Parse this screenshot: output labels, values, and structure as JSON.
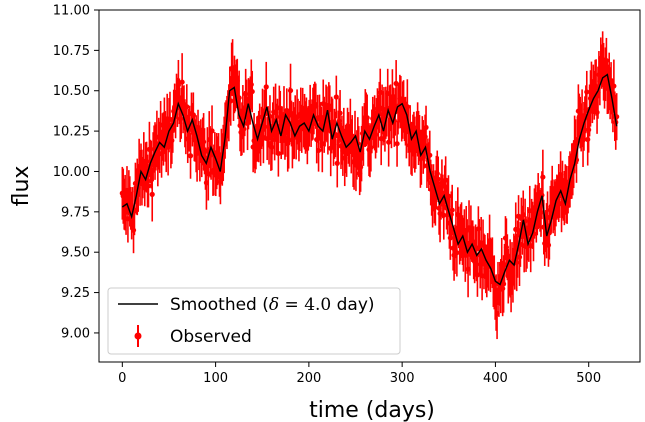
{
  "chart_data": {
    "type": "scatter",
    "xlabel": "time (days)",
    "ylabel": "flux",
    "xlim": [
      -25,
      555
    ],
    "ylim": [
      8.82,
      11.0
    ],
    "xticks": [
      0,
      100,
      200,
      300,
      400,
      500
    ],
    "yticks": [
      9.0,
      9.25,
      9.5,
      9.75,
      10.0,
      10.25,
      10.5,
      10.75,
      11.0
    ],
    "xtick_labels": [
      "0",
      "100",
      "200",
      "300",
      "400",
      "500"
    ],
    "ytick_labels": [
      "9.00",
      "9.25",
      "9.50",
      "9.75",
      "10.00",
      "10.25",
      "10.50",
      "10.75",
      "11.00"
    ],
    "legend": {
      "placement": "lower-left",
      "entries": [
        {
          "label_prefix": "Smoothed (",
          "label_delta": "δ",
          "label_eq": " = 4.0",
          "label_suffix": " day)"
        },
        {
          "label": "Observed"
        }
      ]
    },
    "series": [
      {
        "name": "Smoothed (δ = 4.0 day)",
        "kind": "line",
        "color": "#000000",
        "x": [
          0,
          5,
          10,
          15,
          20,
          25,
          30,
          35,
          40,
          45,
          50,
          55,
          60,
          65,
          70,
          75,
          80,
          85,
          90,
          95,
          100,
          105,
          110,
          115,
          120,
          125,
          130,
          135,
          140,
          145,
          150,
          155,
          160,
          165,
          170,
          175,
          180,
          185,
          190,
          195,
          200,
          205,
          210,
          215,
          220,
          225,
          230,
          235,
          240,
          245,
          250,
          255,
          260,
          265,
          270,
          275,
          280,
          285,
          290,
          295,
          300,
          305,
          310,
          315,
          320,
          325,
          330,
          335,
          340,
          345,
          350,
          355,
          360,
          365,
          370,
          375,
          380,
          385,
          390,
          395,
          400,
          405,
          410,
          415,
          420,
          425,
          430,
          435,
          440,
          445,
          450,
          455,
          460,
          465,
          470,
          475,
          480,
          485,
          490,
          495,
          500,
          505,
          510,
          515,
          520,
          525,
          530
        ],
        "y": [
          9.78,
          9.8,
          9.72,
          9.85,
          10.0,
          9.95,
          10.05,
          10.12,
          10.18,
          10.15,
          10.25,
          10.3,
          10.42,
          10.35,
          10.25,
          10.32,
          10.22,
          10.1,
          10.05,
          10.15,
          10.08,
          10.0,
          10.2,
          10.5,
          10.52,
          10.35,
          10.28,
          10.42,
          10.3,
          10.2,
          10.3,
          10.4,
          10.25,
          10.32,
          10.22,
          10.35,
          10.3,
          10.22,
          10.28,
          10.3,
          10.25,
          10.35,
          10.28,
          10.25,
          10.38,
          10.2,
          10.3,
          10.22,
          10.15,
          10.18,
          10.22,
          10.12,
          10.25,
          10.2,
          10.28,
          10.35,
          10.25,
          10.38,
          10.3,
          10.4,
          10.42,
          10.35,
          10.2,
          10.25,
          10.1,
          10.15,
          10.0,
          9.9,
          9.8,
          9.85,
          9.75,
          9.65,
          9.55,
          9.6,
          9.5,
          9.55,
          9.48,
          9.52,
          9.45,
          9.4,
          9.32,
          9.3,
          9.38,
          9.45,
          9.42,
          9.55,
          9.7,
          9.55,
          9.62,
          9.75,
          9.85,
          9.6,
          9.7,
          9.82,
          9.88,
          9.8,
          9.95,
          10.05,
          10.2,
          10.3,
          10.38,
          10.45,
          10.5,
          10.58,
          10.6,
          10.45,
          10.28
        ]
      },
      {
        "name": "Observed",
        "kind": "errorbar",
        "color": "#ff0000",
        "x_range": [
          0,
          530
        ],
        "n_points": 530,
        "y_error": 0.15
      }
    ]
  }
}
